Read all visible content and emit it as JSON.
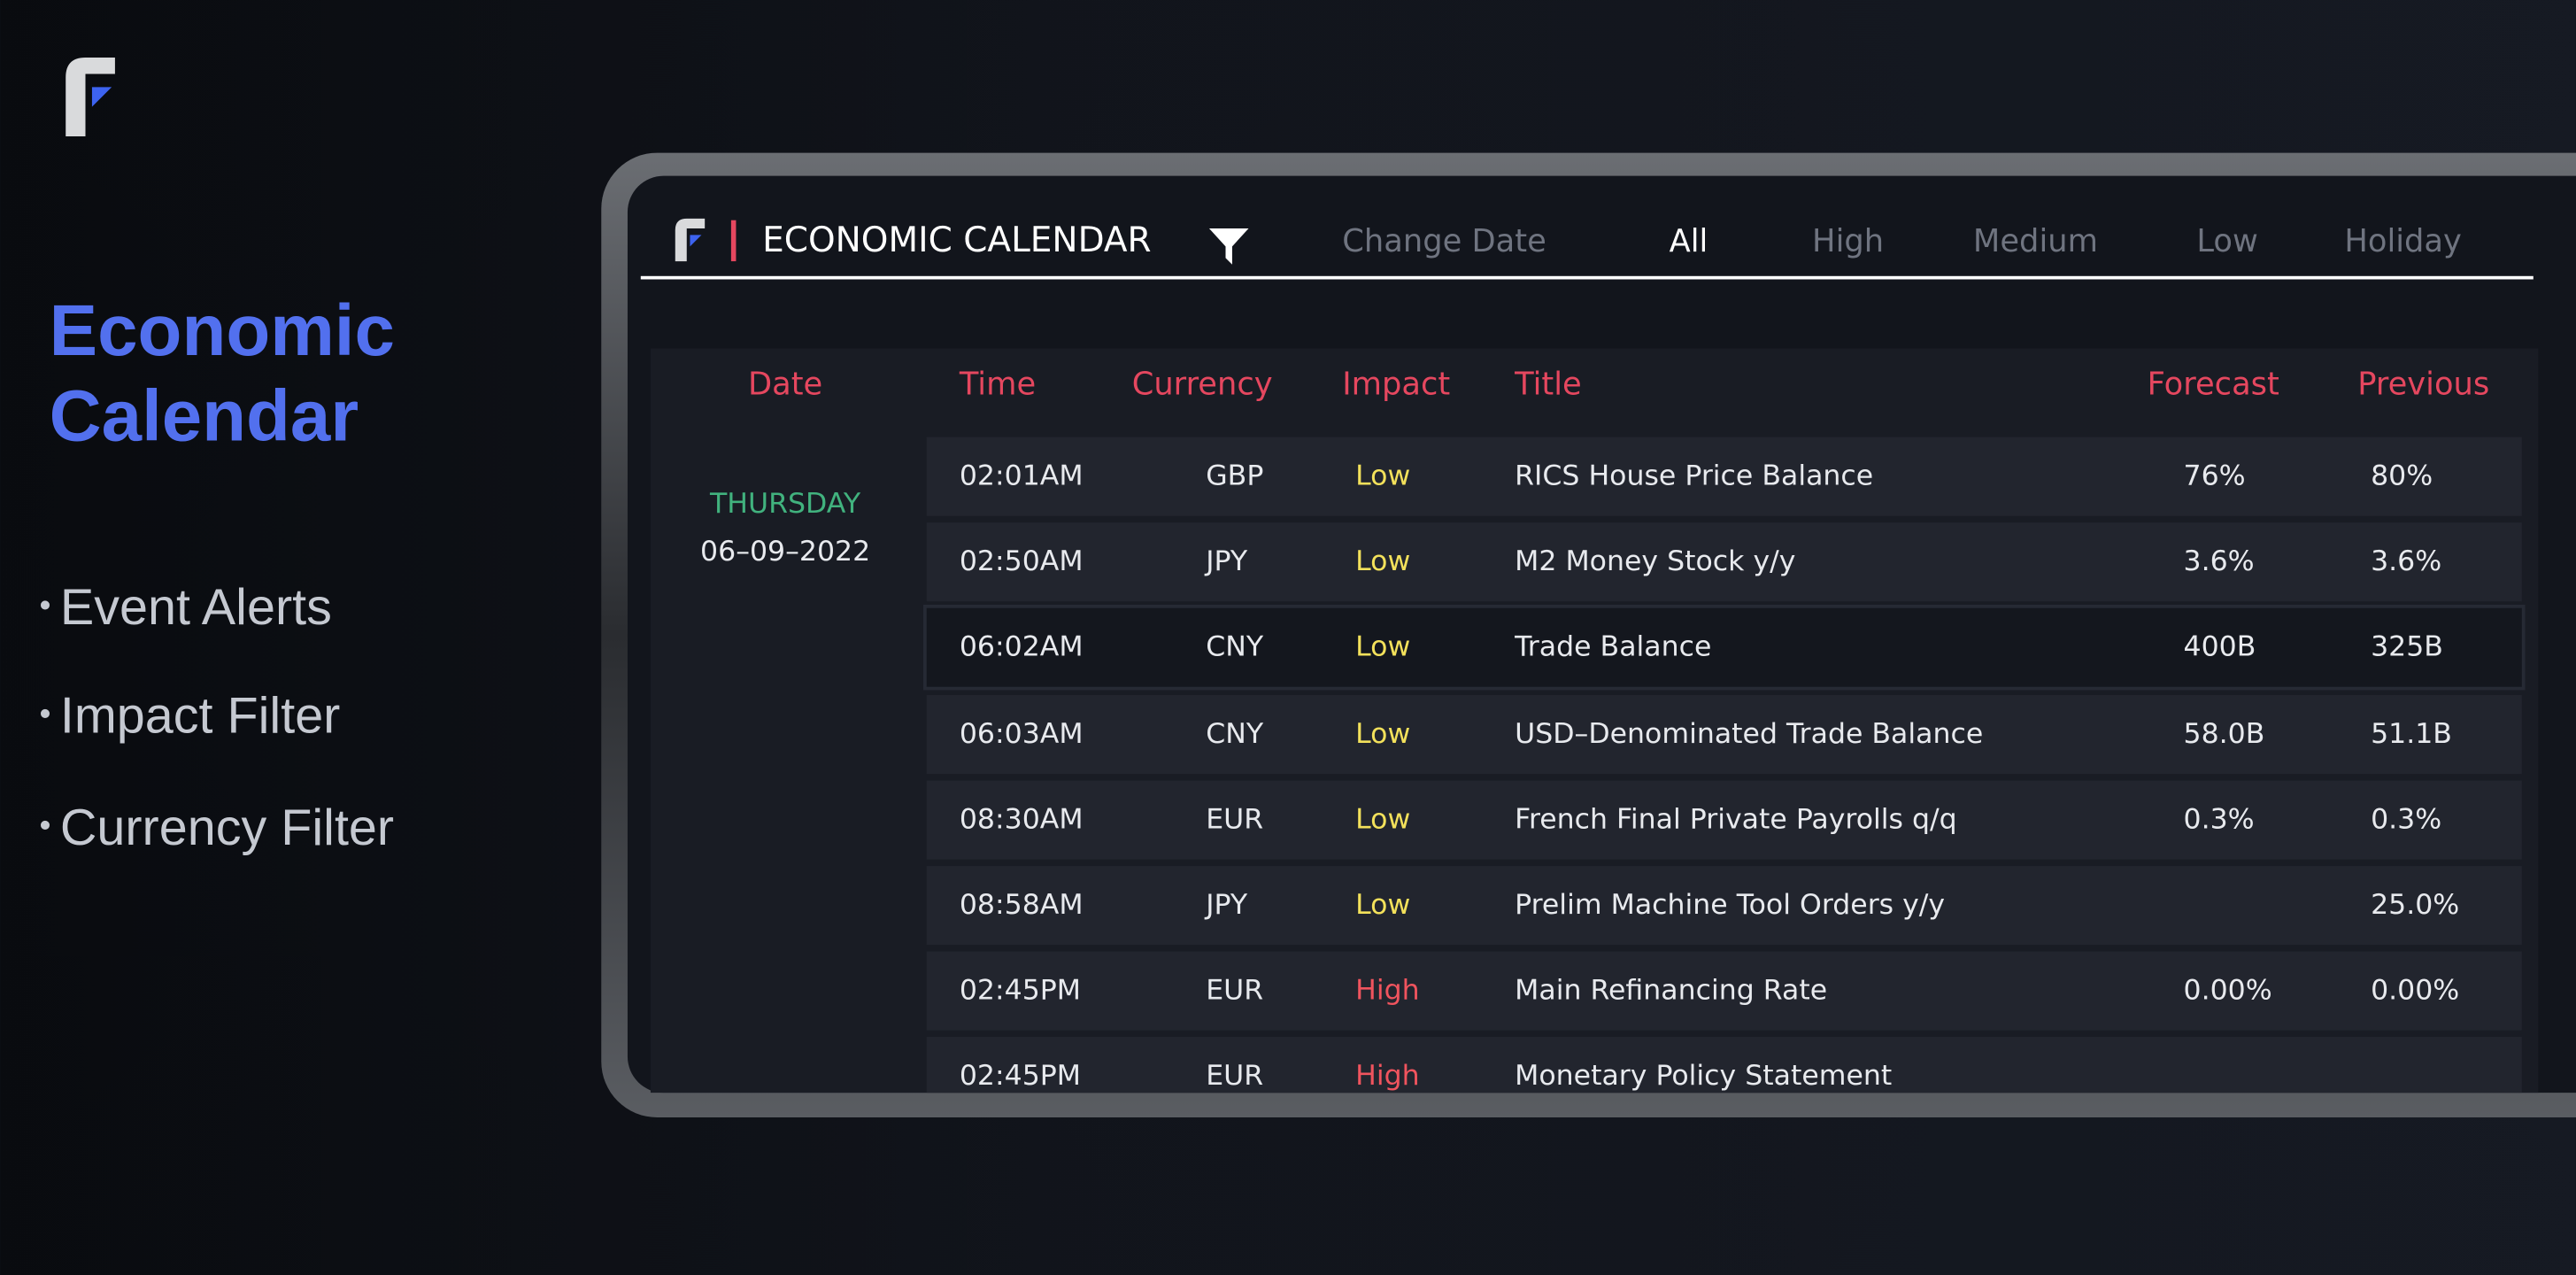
{
  "hero": {
    "title": "Economic Calendar",
    "features": [
      "Event Alerts",
      "Impact Filter",
      "Currency Filter"
    ]
  },
  "app": {
    "title": "ECONOMIC CALENDAR",
    "change_date": "Change Date",
    "filters": [
      "All",
      "High",
      "Medium",
      "Low",
      "Holiday"
    ],
    "active_filter": 0
  },
  "table": {
    "headers": [
      "Date",
      "Time",
      "Currency",
      "Impact",
      "Title",
      "Forecast",
      "Previous"
    ],
    "day": "THURSDAY",
    "date": "06–09–2022",
    "highlighted_row": 2,
    "rows": [
      [
        "02:01AM",
        "GBP",
        "Low",
        "RICS House Price Balance",
        "76%",
        "80%"
      ],
      [
        "02:50AM",
        "JPY",
        "Low",
        "M2 Money Stock y/y",
        "3.6%",
        "3.6%"
      ],
      [
        "06:02AM",
        "CNY",
        "Low",
        "Trade Balance",
        "400B",
        "325B"
      ],
      [
        "06:03AM",
        "CNY",
        "Low",
        "USD–Denominated Trade Balance",
        "58.0B",
        "51.1B"
      ],
      [
        "08:30AM",
        "EUR",
        "Low",
        "French Final Private Payrolls q/q",
        "0.3%",
        "0.3%"
      ],
      [
        "08:58AM",
        "JPY",
        "Low",
        "Prelim Machine Tool Orders y/y",
        null,
        "25.0%"
      ],
      [
        "02:45PM",
        "EUR",
        "High",
        "Main Refinancing Rate",
        "0.00%",
        "0.00%"
      ],
      [
        "02:45PM",
        "EUR",
        "High",
        "Monetary Policy Statement",
        null,
        null
      ]
    ]
  }
}
